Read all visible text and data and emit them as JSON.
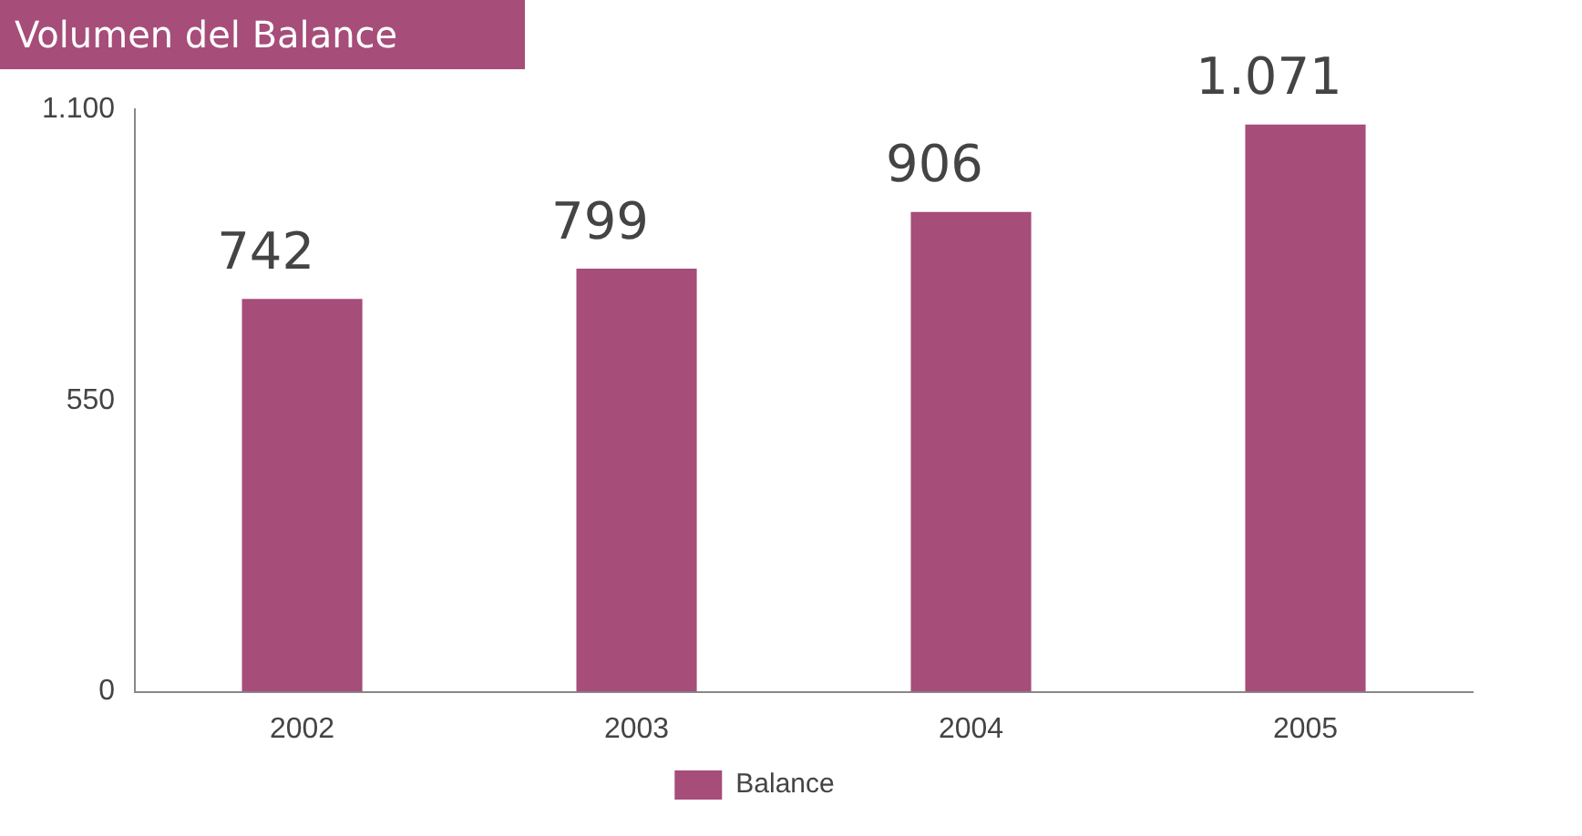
{
  "chart_data": {
    "type": "bar",
    "title": "Volumen del Balance",
    "categories": [
      "2002",
      "2003",
      "2004",
      "2005"
    ],
    "series": [
      {
        "name": "Balance",
        "color": "#a64d79",
        "values": [
          742,
          799,
          906,
          1071
        ],
        "value_labels": [
          "742",
          "799",
          "906",
          "1.071"
        ]
      }
    ],
    "ylim": [
      0,
      1100
    ],
    "yticks": [
      0,
      550,
      {
        "value": 1100,
        "label": "1.100"
      }
    ],
    "grid": false,
    "legend": "bottom"
  }
}
